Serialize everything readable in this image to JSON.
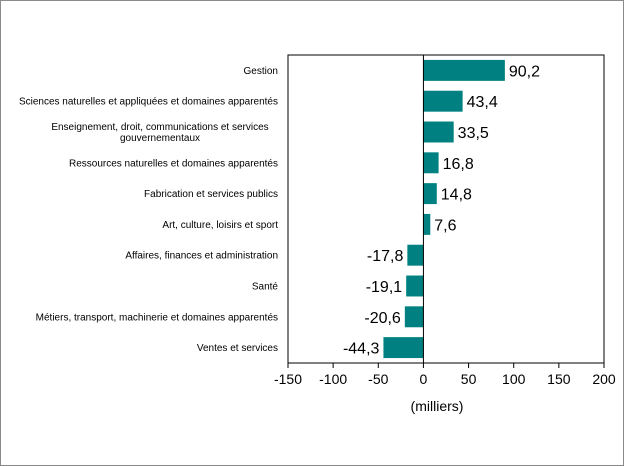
{
  "chart_data": {
    "type": "bar",
    "orientation": "horizontal",
    "categories": [
      [
        "Gestion"
      ],
      [
        "Sciences naturelles et appliquées et domaines apparentés"
      ],
      [
        "Enseignement, droit, communications et services",
        "gouvernementaux"
      ],
      [
        "Ressources naturelles et domaines apparentés"
      ],
      [
        "Fabrication et services publics"
      ],
      [
        "Art, culture, loisirs et sport"
      ],
      [
        "Affaires, finances et administration"
      ],
      [
        "Santé"
      ],
      [
        "Métiers, transport, machinerie et domaines apparentés"
      ],
      [
        "Ventes et services"
      ]
    ],
    "values": [
      90.2,
      43.4,
      33.5,
      16.8,
      14.8,
      7.6,
      -17.8,
      -19.1,
      -20.6,
      -44.3
    ],
    "value_labels": [
      "90,2",
      "43,4",
      "33,5",
      "16,8",
      "14,8",
      "7,6",
      "-17,8",
      "-19,1",
      "-20,6",
      "-44,3"
    ],
    "xlim": [
      -150,
      200
    ],
    "xticks": [
      -150,
      -100,
      -50,
      0,
      50,
      100,
      150,
      200
    ],
    "xlabel": "(milliers)",
    "grid": false,
    "bar_color": "#008080"
  }
}
